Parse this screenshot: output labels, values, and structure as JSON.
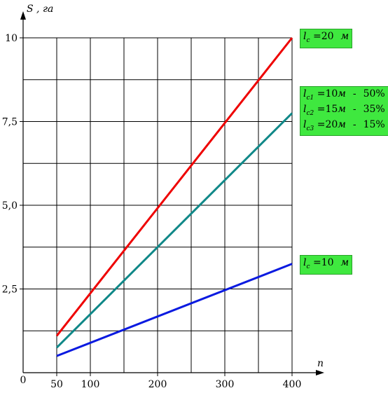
{
  "chart_data": {
    "type": "line",
    "ylabel": "S , га",
    "xlabel": "n",
    "origin_label": "0",
    "x_ticks": [
      50,
      100,
      200,
      300,
      400
    ],
    "y_ticks": [
      2.5,
      5.0,
      7.5,
      10
    ],
    "y_tick_labels": [
      "2,5",
      "5,0",
      "7,5",
      "10"
    ],
    "xlim": [
      0,
      400
    ],
    "ylim": [
      0,
      10
    ],
    "grid": true,
    "series": [
      {
        "color": "#ee0000",
        "x": [
          50,
          400
        ],
        "y": [
          1.1,
          10.0
        ]
      },
      {
        "color": "#108888",
        "x": [
          50,
          400
        ],
        "y": [
          0.75,
          7.75
        ]
      },
      {
        "color": "#0a1ae0",
        "x": [
          50,
          400
        ],
        "y": [
          0.5,
          3.25
        ]
      }
    ],
    "legends": [
      {
        "lines": [
          {
            "l": "l",
            "sub": "с",
            "value": "=20",
            "unit": "м",
            "share": ""
          }
        ]
      },
      {
        "lines": [
          {
            "l": "l",
            "sub": "с1",
            "value": "=10",
            "unit": "м",
            "share": "50%"
          },
          {
            "l": "l",
            "sub": "с2",
            "value": "=15",
            "unit": "м",
            "share": "35%"
          },
          {
            "l": "l",
            "sub": "с3",
            "value": "=20",
            "unit": "м",
            "share": "15%"
          }
        ]
      },
      {
        "lines": [
          {
            "l": "l",
            "sub": "с",
            "value": "=10",
            "unit": "м",
            "share": ""
          }
        ]
      }
    ],
    "legend_separator": "-"
  }
}
